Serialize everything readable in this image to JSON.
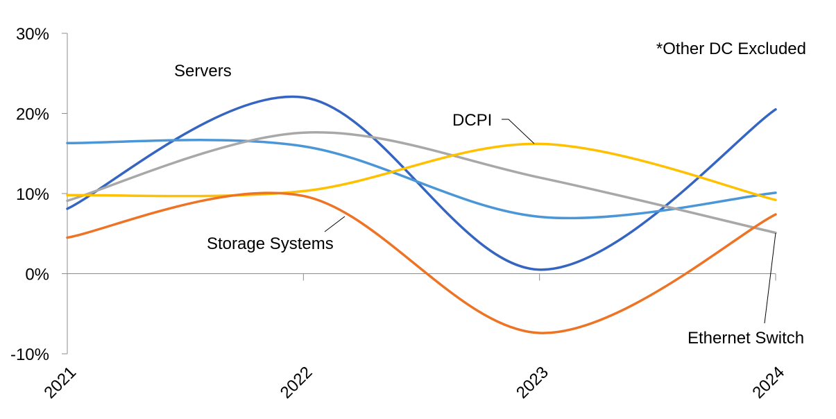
{
  "chart_data": {
    "type": "line",
    "title": "",
    "xlabel": "",
    "ylabel": "",
    "x": [
      "2021",
      "2022",
      "2023",
      "2024"
    ],
    "ylim": [
      -10,
      30
    ],
    "yticks": [
      -10,
      0,
      10,
      20,
      30
    ],
    "ytick_labels": [
      "-10%",
      "0%",
      "10%",
      "20%",
      "30%"
    ],
    "grid": false,
    "smooth": true,
    "annotation": "*Other DC Excluded",
    "series": [
      {
        "name": "Servers",
        "color": "#3565C0",
        "values": [
          8.1,
          22.0,
          0.5,
          20.5
        ]
      },
      {
        "name": "",
        "color": "#4A96D6",
        "values": [
          16.3,
          15.9,
          7.1,
          10.1
        ]
      },
      {
        "name": "Ethernet Switch",
        "color": "#A8A8A8",
        "values": [
          9.1,
          17.6,
          12.0,
          5.1
        ]
      },
      {
        "name": "DCPI",
        "color": "#FFC000",
        "values": [
          9.8,
          10.3,
          16.2,
          9.2
        ]
      },
      {
        "name": "Storage Systems",
        "color": "#ED7325",
        "values": [
          4.5,
          9.7,
          -7.4,
          7.4
        ]
      }
    ]
  }
}
